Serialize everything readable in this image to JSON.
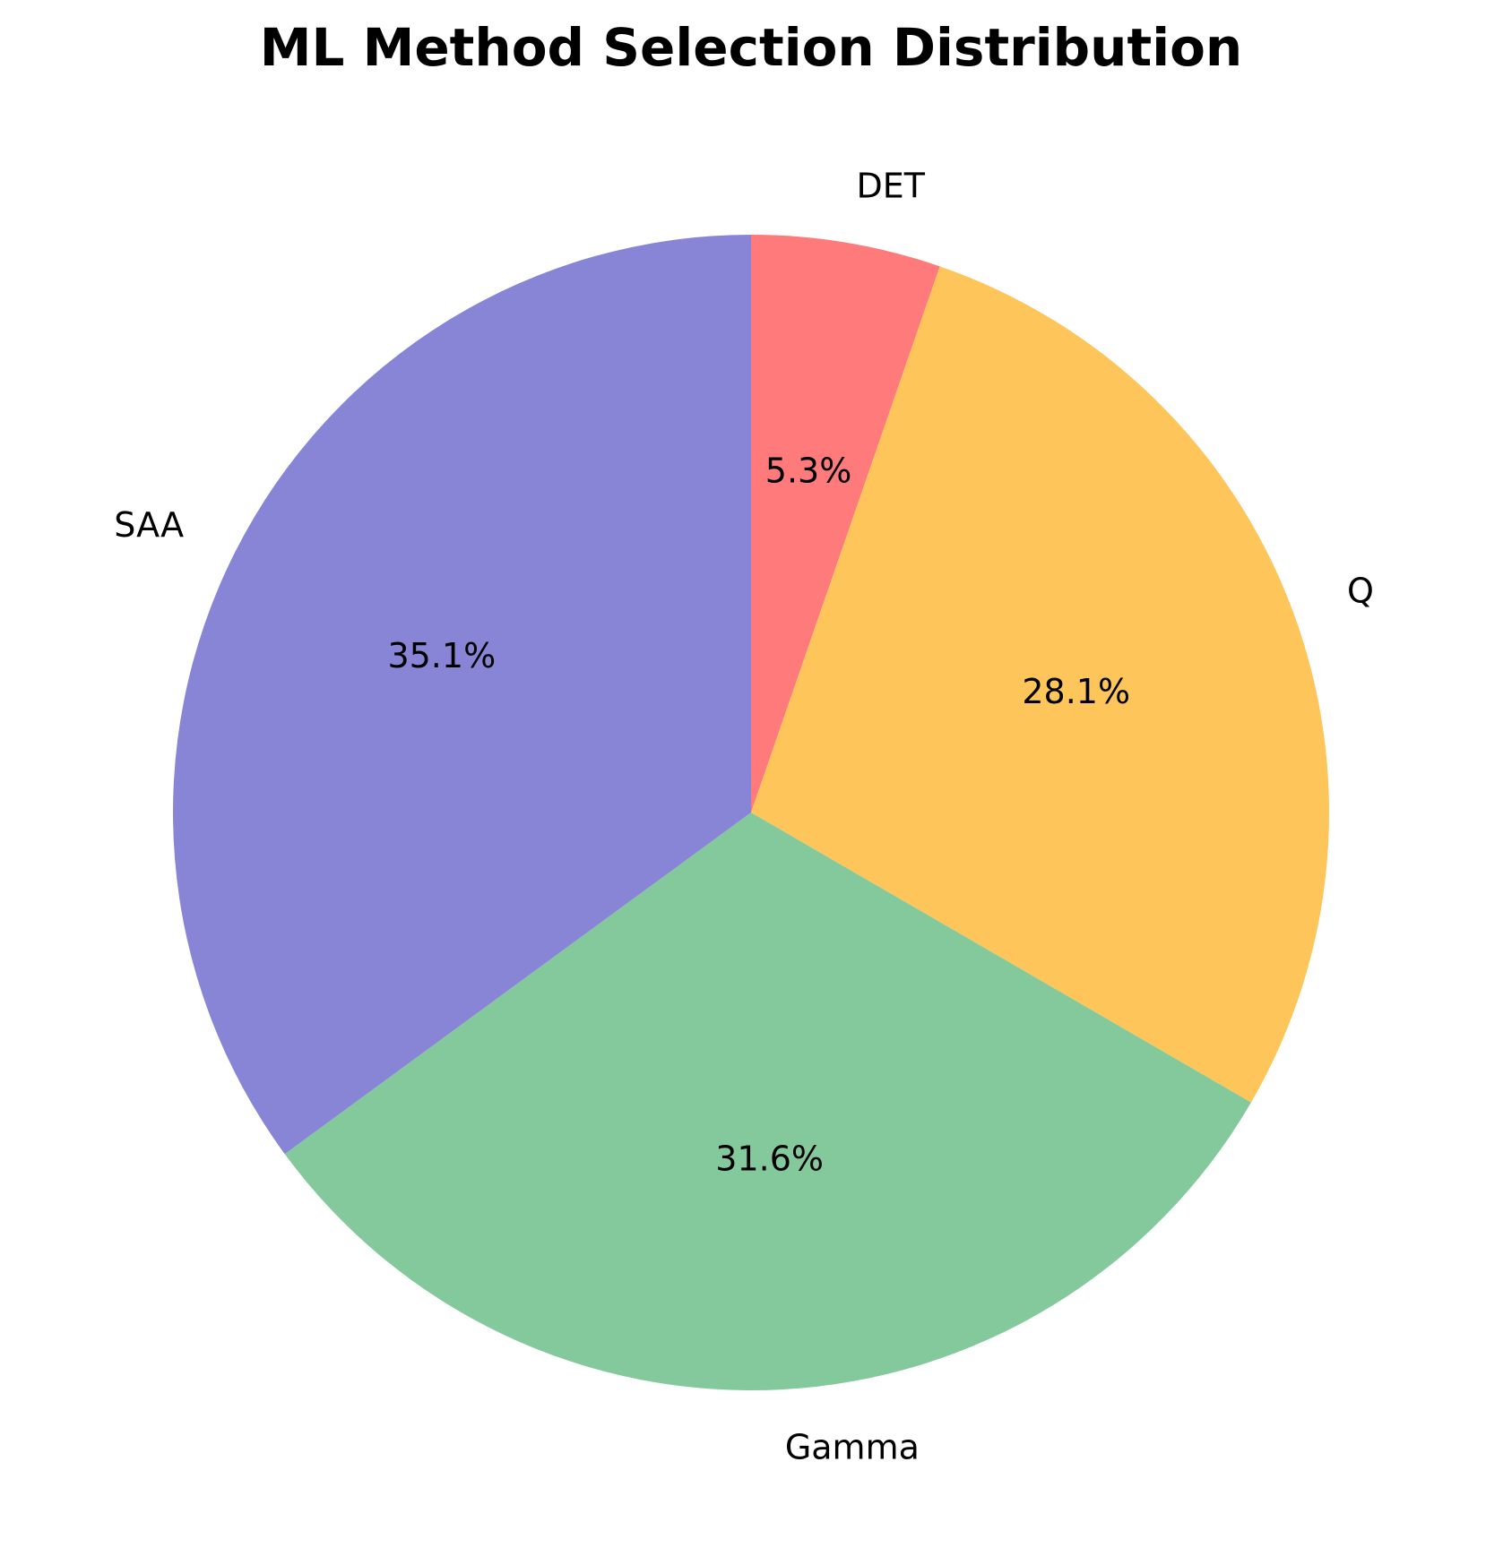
{
  "chart_data": {
    "type": "pie",
    "title": "ML Method Selection Distribution",
    "categories": [
      "DET",
      "Q",
      "Gamma",
      "SAA"
    ],
    "values": [
      5.3,
      28.1,
      31.6,
      35.1
    ],
    "labels": [
      "5.3%",
      "28.1%",
      "31.6%",
      "35.1%"
    ],
    "colors": [
      "#ff7b7b",
      "#fec65a",
      "#84c99c",
      "#8985d6"
    ],
    "start_angle_deg": 90,
    "direction": "clockwise"
  }
}
